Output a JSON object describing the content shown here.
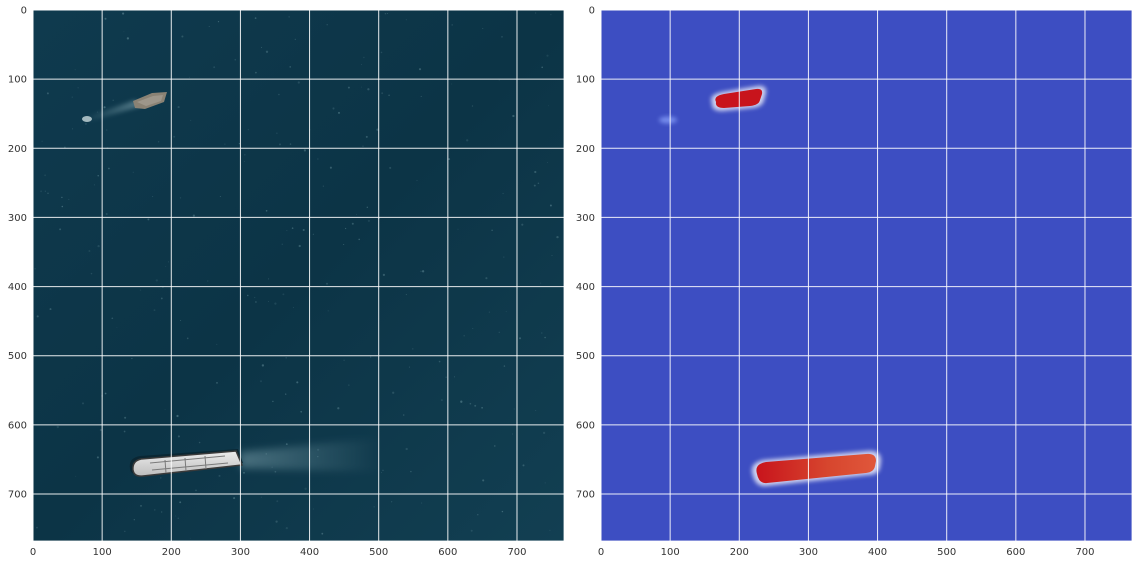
{
  "colors": {
    "ocean": "#0f3a4e",
    "heat_background": "#3d4ec2",
    "heat_high": "#c8141c",
    "grid": "#ffffff"
  },
  "panels": [
    {
      "name": "satellite-image",
      "icon": "aerial-ocean-photo",
      "x_ticks": [
        "0",
        "100",
        "200",
        "300",
        "400",
        "500",
        "600",
        "700"
      ],
      "y_ticks": [
        "0",
        "100",
        "200",
        "300",
        "400",
        "500",
        "600",
        "700"
      ]
    },
    {
      "name": "ship-detection-heatmap",
      "icon": "segmentation-heatmap",
      "x_ticks": [
        "0",
        "100",
        "200",
        "300",
        "400",
        "500",
        "600",
        "700"
      ],
      "y_ticks": [
        "0",
        "100",
        "200",
        "300",
        "400",
        "500",
        "600",
        "700"
      ]
    }
  ],
  "chart_data": {
    "type": "heatmap",
    "xlim": [
      0,
      768
    ],
    "ylim": [
      768,
      0
    ],
    "grid": true,
    "objects": [
      {
        "label": "",
        "kind": "small-ship",
        "x_range": [
          150,
          235
        ],
        "y_range": [
          120,
          155
        ]
      },
      {
        "label": "",
        "kind": "large-ship",
        "x_range": [
          220,
          395
        ],
        "y_range": [
          645,
          690
        ]
      }
    ]
  }
}
